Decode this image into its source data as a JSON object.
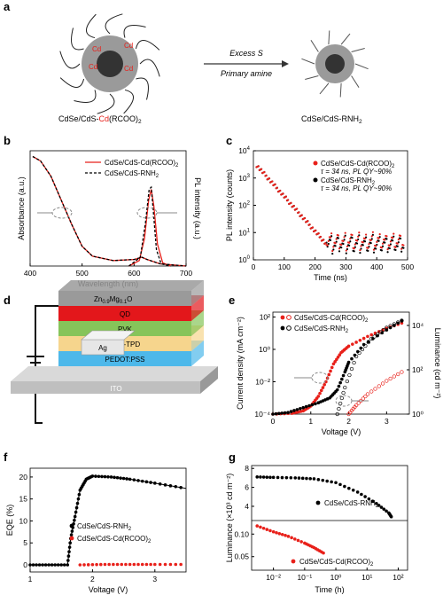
{
  "panels": {
    "a": {
      "letter": "a",
      "arrow_top": "Excess S",
      "arrow_bottom": "Primary amine",
      "left_caption_pre": "CdSe/CdS-",
      "left_caption_cd": "Cd",
      "left_caption_post": "(RCOO)",
      "left_caption_sub": "2",
      "right_caption": "CdSe/CdS-RNH",
      "right_caption_sub": "2",
      "cd_label": "Cd"
    },
    "b": {
      "letter": "b"
    },
    "c": {
      "letter": "c"
    },
    "d": {
      "letter": "d",
      "layers": [
        "Ag",
        "Zn0.9Mg0.1O",
        "QD",
        "PVK",
        "Poly-TPD",
        "PEDOT:PSS",
        "ITO"
      ],
      "zn_main": "Zn",
      "zn_sub1": "0.9",
      "mg": "Mg",
      "mg_sub": "0.1",
      "o": "O"
    },
    "e": {
      "letter": "e"
    },
    "f": {
      "letter": "f"
    },
    "g": {
      "letter": "g"
    }
  },
  "colors": {
    "red": "#e8201a",
    "black": "#000000",
    "qd_red": "#e3171b",
    "pvk": "#86c45a",
    "polytpd": "#f6d58d",
    "pedot": "#4db8ea",
    "ito": "#bfbfbf",
    "zno": "#9a9a9a",
    "ag": "#e6e6e6"
  },
  "chart_data": [
    {
      "id": "b",
      "type": "line",
      "xlabel": "Wavelength (nm)",
      "ylabel_left": "Absorbance (a.u.)",
      "ylabel_right": "PL intensity (a.u.)",
      "xlim": [
        400,
        700
      ],
      "xticks": [
        "400",
        "500",
        "600",
        "700"
      ],
      "series": [
        {
          "name": "CdSe/CdS-Cd(RCOO)",
          "name_sub": "2",
          "style": "solid-red",
          "absorbance": [
            [
              405,
              1.0
            ],
            [
              420,
              0.96
            ],
            [
              440,
              0.82
            ],
            [
              460,
              0.6
            ],
            [
              480,
              0.38
            ],
            [
              500,
              0.18
            ],
            [
              520,
              0.09
            ],
            [
              560,
              0.05
            ],
            [
              600,
              0.06
            ],
            [
              615,
              0.08
            ],
            [
              625,
              0.06
            ],
            [
              650,
              0.02
            ],
            [
              700,
              0.0
            ]
          ],
          "pl": [
            [
              590,
              0.0
            ],
            [
              610,
              0.05
            ],
            [
              620,
              0.25
            ],
            [
              628,
              0.6
            ],
            [
              633,
              0.7
            ],
            [
              638,
              0.55
            ],
            [
              645,
              0.2
            ],
            [
              655,
              0.03
            ],
            [
              670,
              0.0
            ]
          ]
        },
        {
          "name": "CdSe/CdS-RNH",
          "name_sub": "2",
          "style": "dashed-black",
          "absorbance": [
            [
              405,
              1.0
            ],
            [
              420,
              0.96
            ],
            [
              440,
              0.82
            ],
            [
              460,
              0.6
            ],
            [
              480,
              0.38
            ],
            [
              500,
              0.18
            ],
            [
              520,
              0.09
            ],
            [
              560,
              0.05
            ],
            [
              600,
              0.06
            ],
            [
              615,
              0.08
            ],
            [
              625,
              0.06
            ],
            [
              650,
              0.02
            ],
            [
              700,
              0.0
            ]
          ],
          "pl": [
            [
              590,
              0.0
            ],
            [
              612,
              0.08
            ],
            [
              622,
              0.4
            ],
            [
              629,
              0.7
            ],
            [
              633,
              0.72
            ],
            [
              637,
              0.5
            ],
            [
              643,
              0.15
            ],
            [
              652,
              0.02
            ],
            [
              670,
              0.0
            ]
          ]
        }
      ]
    },
    {
      "id": "c",
      "type": "scatter",
      "xlabel": "Time (ns)",
      "ylabel": "PL intensity (counts)",
      "xlim": [
        0,
        500
      ],
      "ylim_log": [
        0,
        4
      ],
      "xticks": [
        "0",
        "100",
        "200",
        "300",
        "400",
        "500"
      ],
      "yticks": [
        "10^0",
        "10^1",
        "10^2",
        "10^3",
        "10^4"
      ],
      "series": [
        {
          "name": "CdSe/CdS-Cd(RCOO)",
          "name_sub": "2",
          "annotation": "τ = 34 ns, PL QY~90%",
          "color": "red"
        },
        {
          "name": "CdSe/CdS-RNH",
          "name_sub": "2",
          "annotation": "τ = 34 ns, PL QY~90%",
          "color": "black"
        }
      ]
    },
    {
      "id": "e",
      "type": "scatter",
      "xlabel": "Voltage (V)",
      "ylabel_left": "Current density (mA cm⁻²)",
      "ylabel_right": "Luminance (cd m⁻²)",
      "xlim": [
        0,
        3.6
      ],
      "xticks": [
        "0",
        "1",
        "2",
        "3"
      ],
      "yticks_left": [
        "10⁻⁴",
        "10⁻²",
        "10⁰",
        "10²"
      ],
      "yticks_right": [
        "10⁰",
        "10²",
        "10⁴"
      ],
      "series": [
        {
          "name": "CdSe/CdS-Cd(RCOO)",
          "name_sub": "2",
          "color": "red",
          "current": [
            [
              0,
              -4
            ],
            [
              0.5,
              -3.95
            ],
            [
              0.8,
              -3.8
            ],
            [
              1.0,
              -3.5
            ],
            [
              1.2,
              -2.9
            ],
            [
              1.4,
              -2.0
            ],
            [
              1.6,
              -0.9
            ],
            [
              1.8,
              -0.2
            ],
            [
              2.0,
              0.2
            ],
            [
              2.5,
              0.8
            ],
            [
              3.0,
              1.3
            ],
            [
              3.5,
              1.7
            ]
          ],
          "luminance": [
            [
              2.0,
              0.0
            ],
            [
              2.2,
              0.4
            ],
            [
              2.5,
              0.9
            ],
            [
              3.0,
              1.5
            ],
            [
              3.5,
              2.0
            ]
          ]
        },
        {
          "name": "CdSe/CdS-RNH",
          "name_sub": "2",
          "color": "black",
          "current": [
            [
              0,
              -4
            ],
            [
              0.4,
              -3.9
            ],
            [
              0.8,
              -3.6
            ],
            [
              1.2,
              -3.3
            ],
            [
              1.5,
              -3.0
            ],
            [
              1.7,
              -2.5
            ],
            [
              1.9,
              -1.4
            ],
            [
              2.0,
              -0.8
            ],
            [
              2.4,
              0.3
            ],
            [
              3.0,
              1.2
            ],
            [
              3.5,
              1.9
            ]
          ],
          "luminance": [
            [
              1.7,
              0.0
            ],
            [
              1.9,
              1.2
            ],
            [
              2.2,
              2.6
            ],
            [
              2.6,
              3.4
            ],
            [
              3.0,
              3.9
            ],
            [
              3.5,
              4.3
            ]
          ]
        }
      ]
    },
    {
      "id": "f",
      "type": "scatter",
      "xlabel": "Voltage (V)",
      "ylabel": "EQE (%)",
      "xlim": [
        1,
        3.5
      ],
      "ylim": [
        0,
        22
      ],
      "xticks": [
        "1",
        "2",
        "3"
      ],
      "yticks": [
        "0",
        "5",
        "10",
        "15",
        "20"
      ],
      "series": [
        {
          "name": "CdSe/CdS-RNH",
          "name_sub": "2",
          "color": "black",
          "points": [
            [
              1.0,
              0
            ],
            [
              1.3,
              0
            ],
            [
              1.6,
              0
            ],
            [
              1.65,
              6
            ],
            [
              1.72,
              11
            ],
            [
              1.8,
              17
            ],
            [
              1.9,
              19.5
            ],
            [
              2.0,
              20.2
            ],
            [
              2.3,
              20.0
            ],
            [
              2.6,
              19.5
            ],
            [
              3.0,
              18.6
            ],
            [
              3.5,
              17.4
            ]
          ]
        },
        {
          "name": "CdSe/CdS-Cd(RCOO)",
          "name_sub": "2",
          "color": "red",
          "points": [
            [
              1.8,
              0
            ],
            [
              2.2,
              0.1
            ],
            [
              2.6,
              0.1
            ],
            [
              3.0,
              0.1
            ],
            [
              3.5,
              0.1
            ]
          ]
        }
      ]
    },
    {
      "id": "g",
      "type": "scatter",
      "xlabel": "Time (h)",
      "ylabel": "Luminance (×10³ cd m⁻²)",
      "xscale": "log",
      "xticks": [
        "10⁻²",
        "10⁻¹",
        "10⁰",
        "10¹",
        "10²"
      ],
      "yticks_top": [
        "4",
        "6",
        "8"
      ],
      "yticks_bottom": [
        "0.05",
        "0.10"
      ],
      "series": [
        {
          "name": "CdSe/CdS-RNH",
          "name_sub": "2",
          "color": "black",
          "points": [
            [
              0.003,
              7.1
            ],
            [
              0.01,
              7.05
            ],
            [
              0.05,
              7.0
            ],
            [
              0.2,
              6.9
            ],
            [
              1,
              6.5
            ],
            [
              5,
              5.5
            ],
            [
              20,
              4.3
            ],
            [
              50,
              3.3
            ],
            [
              60,
              2.9
            ]
          ]
        },
        {
          "name": "CdSe/CdS-Cd(RCOO)",
          "name_sub": "2",
          "color": "red",
          "points": [
            [
              0.003,
              0.118
            ],
            [
              0.01,
              0.105
            ],
            [
              0.03,
              0.095
            ],
            [
              0.1,
              0.08
            ],
            [
              0.2,
              0.07
            ],
            [
              0.4,
              0.058
            ]
          ]
        }
      ]
    }
  ]
}
